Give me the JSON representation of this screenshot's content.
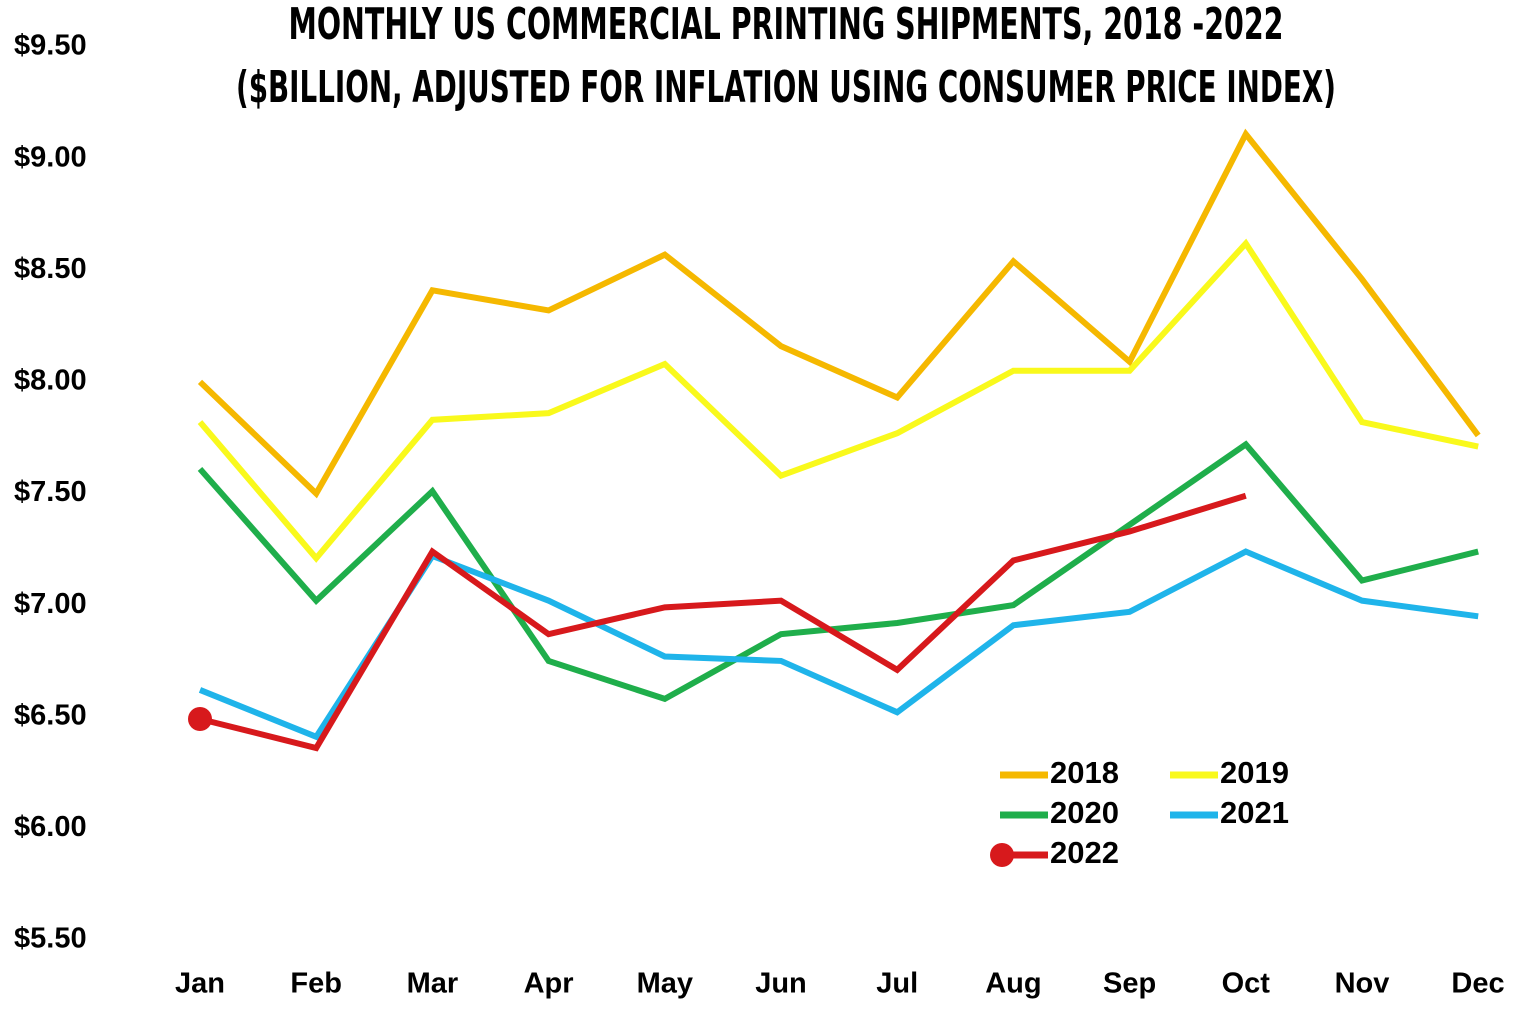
{
  "chart_data": {
    "type": "line",
    "title": [
      "MONTHLY US COMMERCIAL PRINTING SHIPMENTS, 2018 -2022",
      "($BILLION, ADJUSTED FOR INFLATION USING CONSUMER PRICE INDEX)"
    ],
    "categories": [
      "Jan",
      "Feb",
      "Mar",
      "Apr",
      "May",
      "Jun",
      "Jul",
      "Aug",
      "Sep",
      "Oct",
      "Nov",
      "Dec"
    ],
    "series": [
      {
        "name": "2018",
        "color": "#f5b800",
        "values": [
          8.0,
          7.5,
          8.41,
          8.32,
          8.57,
          8.16,
          7.93,
          8.54,
          8.09,
          9.11,
          8.46,
          7.76
        ]
      },
      {
        "name": "2019",
        "color": "#f9f91c",
        "values": [
          7.82,
          7.21,
          7.83,
          7.86,
          8.08,
          7.58,
          7.77,
          8.05,
          8.05,
          8.62,
          7.82,
          7.71
        ]
      },
      {
        "name": "2020",
        "color": "#1fae4b",
        "values": [
          7.61,
          7.02,
          7.51,
          6.75,
          6.58,
          6.87,
          6.92,
          7.0,
          7.36,
          7.72,
          7.11,
          7.24
        ]
      },
      {
        "name": "2021",
        "color": "#1fb4ea",
        "values": [
          6.62,
          6.41,
          7.22,
          7.02,
          6.77,
          6.75,
          6.52,
          6.91,
          6.97,
          7.24,
          7.02,
          6.95
        ]
      },
      {
        "name": "2022",
        "color": "#d7191c",
        "marker": true,
        "values": [
          6.49,
          6.36,
          7.24,
          6.87,
          6.99,
          7.02,
          6.71,
          7.2,
          7.33,
          7.49,
          null,
          null
        ]
      }
    ],
    "ylim": [
      5.5,
      9.5
    ],
    "yticks": [
      {
        "value": 5.5,
        "label": "$5.50"
      },
      {
        "value": 6,
        "label": "$6.00"
      },
      {
        "value": 6.5,
        "label": "$6.50"
      },
      {
        "value": 7,
        "label": "$7.00"
      },
      {
        "value": 7.5,
        "label": "$7.50"
      },
      {
        "value": 8,
        "label": "$8.00"
      },
      {
        "value": 8.5,
        "label": "$8.50"
      },
      {
        "value": 9,
        "label": "$9.00"
      },
      {
        "value": 9.5,
        "label": "$9.50"
      }
    ],
    "grid": false
  }
}
